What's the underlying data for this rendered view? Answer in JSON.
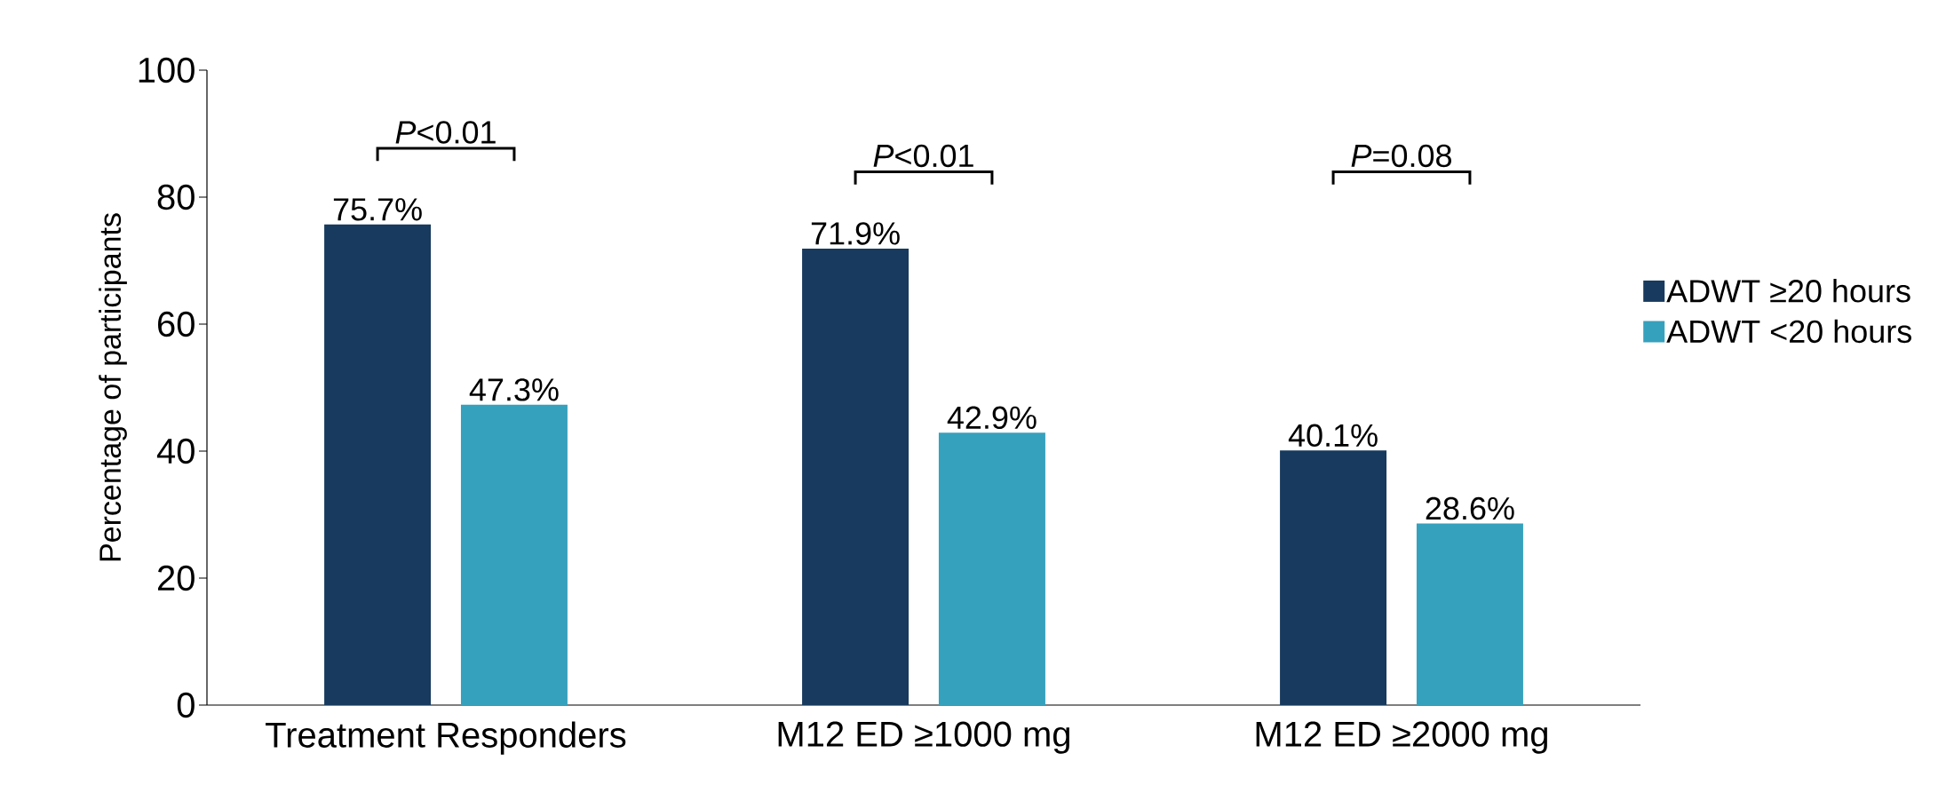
{
  "chart_data": {
    "type": "bar",
    "ylabel": "Percentage of participants",
    "categories": [
      "Treatment Responders",
      "M12 ED ≥1000 mg",
      "M12 ED ≥2000 mg"
    ],
    "series": [
      {
        "name": "ADWT ≥20 hours",
        "color": "#173a5e",
        "values": [
          75.7,
          71.9,
          40.1
        ],
        "value_labels": [
          "75.7%",
          "71.9%",
          "40.1%"
        ]
      },
      {
        "name": "ADWT <20 hours",
        "color": "#36a1bd",
        "values": [
          47.3,
          42.9,
          28.6
        ],
        "value_labels": [
          "47.3%",
          "42.9%",
          "28.6%"
        ]
      }
    ],
    "ylim": [
      0,
      100
    ],
    "yticks": [
      0,
      20,
      40,
      60,
      80,
      100
    ],
    "grid": false,
    "legend": "right",
    "annotations": [
      "*P*<0.01",
      "*P*<0.01",
      "*P*=0.08"
    ]
  }
}
